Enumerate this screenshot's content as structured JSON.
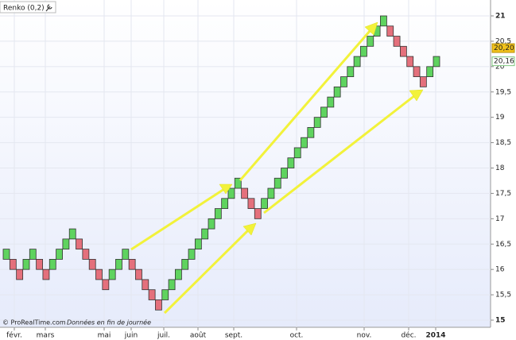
{
  "chart_data": {
    "type": "renko",
    "title": "Renko (0,2)",
    "footer": "© ProRealTime.com",
    "footer_note": "Données en fin de journée",
    "up_color": "#5fd35f",
    "down_color": "#e4707c",
    "open": [
      16.2,
      16.2,
      16.0,
      16.0,
      16.2,
      16.2,
      16.0,
      16.0,
      16.2,
      16.4,
      16.6,
      16.6,
      16.4,
      16.2,
      16.0,
      15.8,
      15.8,
      16.0,
      16.2,
      16.2,
      16.0,
      15.8,
      15.6,
      15.4,
      15.4,
      15.6,
      15.8,
      16.0,
      16.2,
      16.4,
      16.6,
      16.8,
      17.0,
      17.2,
      17.4,
      17.6,
      17.6,
      17.4,
      17.2,
      17.2,
      17.4,
      17.6,
      17.8,
      18.0,
      18.2,
      18.4,
      18.6,
      18.8,
      19.0,
      19.2,
      19.4,
      19.6,
      19.8,
      20.0,
      20.2,
      20.4,
      20.6,
      20.8,
      20.8,
      20.6,
      20.4,
      20.2,
      20.0,
      19.8,
      19.8,
      20.0
    ],
    "close": [
      16.4,
      16.0,
      15.8,
      16.2,
      16.4,
      16.0,
      15.8,
      16.2,
      16.4,
      16.6,
      16.8,
      16.4,
      16.2,
      16.0,
      15.8,
      15.6,
      16.0,
      16.2,
      16.4,
      16.0,
      15.8,
      15.6,
      15.4,
      15.2,
      15.6,
      15.8,
      16.0,
      16.2,
      16.4,
      16.6,
      16.8,
      17.0,
      17.2,
      17.4,
      17.6,
      17.8,
      17.4,
      17.2,
      17.0,
      17.4,
      17.6,
      17.8,
      18.0,
      18.2,
      18.4,
      18.6,
      18.8,
      19.0,
      19.2,
      19.4,
      19.6,
      19.8,
      20.0,
      20.2,
      20.4,
      20.6,
      20.8,
      21.0,
      20.6,
      20.4,
      20.2,
      20.0,
      19.8,
      19.6,
      20.0,
      20.2
    ],
    "xtick_labels": [
      "févr.",
      "mars",
      "mai",
      "juin",
      "juil.",
      "août",
      "sept.",
      "oct.",
      "nov.",
      "déc.",
      "2014"
    ],
    "ylim": [
      15,
      21
    ],
    "yticks": [
      15,
      {
        "value": 15.5,
        "label": "15,5"
      },
      16,
      {
        "value": 16.5,
        "label": "16,5"
      },
      17,
      {
        "value": 17.5,
        "label": "17,5"
      },
      18,
      {
        "value": 18.5,
        "label": "18,5"
      },
      19,
      {
        "value": 19.5,
        "label": "19,5"
      },
      20,
      {
        "value": 20.5,
        "label": "20,5"
      },
      21
    ],
    "last_price": {
      "value": 20.2,
      "label": "20,20"
    },
    "last_close": {
      "value": 20.16,
      "label": "20,16"
    },
    "grid": true
  }
}
